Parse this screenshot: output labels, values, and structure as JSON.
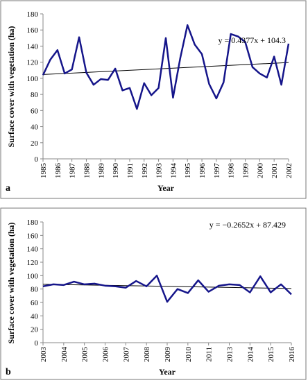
{
  "chart_data": [
    {
      "type": "line",
      "panel": "a",
      "xlabel": "Year",
      "ylabel": "Surface cover with vegetation (ha)",
      "annotation": "y = 0.4377x + 104.3",
      "categories": [
        "1985",
        null,
        "1986",
        null,
        "1987",
        null,
        "1988",
        null,
        "1989",
        null,
        "1990",
        null,
        "1991",
        null,
        "1992",
        null,
        "1993",
        null,
        "1994",
        null,
        "1995",
        null,
        "1996",
        null,
        "1997",
        null,
        "1998",
        null,
        "1999",
        null,
        "2000",
        null,
        "2001",
        null,
        "2002"
      ],
      "series": [
        {
          "name": "Surface cover",
          "color": "#15158a",
          "values": [
            104,
            123,
            135,
            106,
            111,
            151,
            107,
            92,
            99,
            98,
            112,
            85,
            88,
            62,
            94,
            79,
            88,
            150,
            76,
            125,
            166,
            142,
            130,
            93,
            75,
            95,
            155,
            152,
            145,
            114,
            106,
            101,
            127,
            92,
            143
          ]
        }
      ],
      "trend": {
        "color": "#000000",
        "values": [
          104.7,
          119.6
        ]
      },
      "ylim": [
        0,
        180
      ],
      "yticks": [
        0,
        20,
        40,
        60,
        80,
        100,
        120,
        140,
        160,
        180
      ]
    },
    {
      "type": "line",
      "panel": "b",
      "xlabel": "Year",
      "ylabel": "Surface cover with vegetation (ha)",
      "annotation": "y = −0.2652x + 87.429",
      "categories": [
        "2003",
        null,
        "2004",
        null,
        "2005",
        null,
        "2006",
        null,
        "2007",
        null,
        "2008",
        null,
        "2009",
        null,
        "2010",
        null,
        "2011",
        null,
        "2013",
        null,
        "2014",
        null,
        "2015",
        null,
        "2016"
      ],
      "series": [
        {
          "name": "Surface cover",
          "color": "#15158a",
          "values": [
            84,
            87,
            86,
            91,
            87,
            88,
            85,
            84,
            82,
            92,
            84,
            100,
            61,
            80,
            74,
            93,
            76,
            85,
            87,
            86,
            75,
            99,
            75,
            87,
            72
          ]
        }
      ],
      "trend": {
        "color": "#000000",
        "values": [
          87.2,
          80.8
        ]
      },
      "ylim": [
        0,
        180
      ],
      "yticks": [
        0,
        20,
        40,
        60,
        80,
        100,
        120,
        140,
        160,
        180
      ]
    }
  ]
}
